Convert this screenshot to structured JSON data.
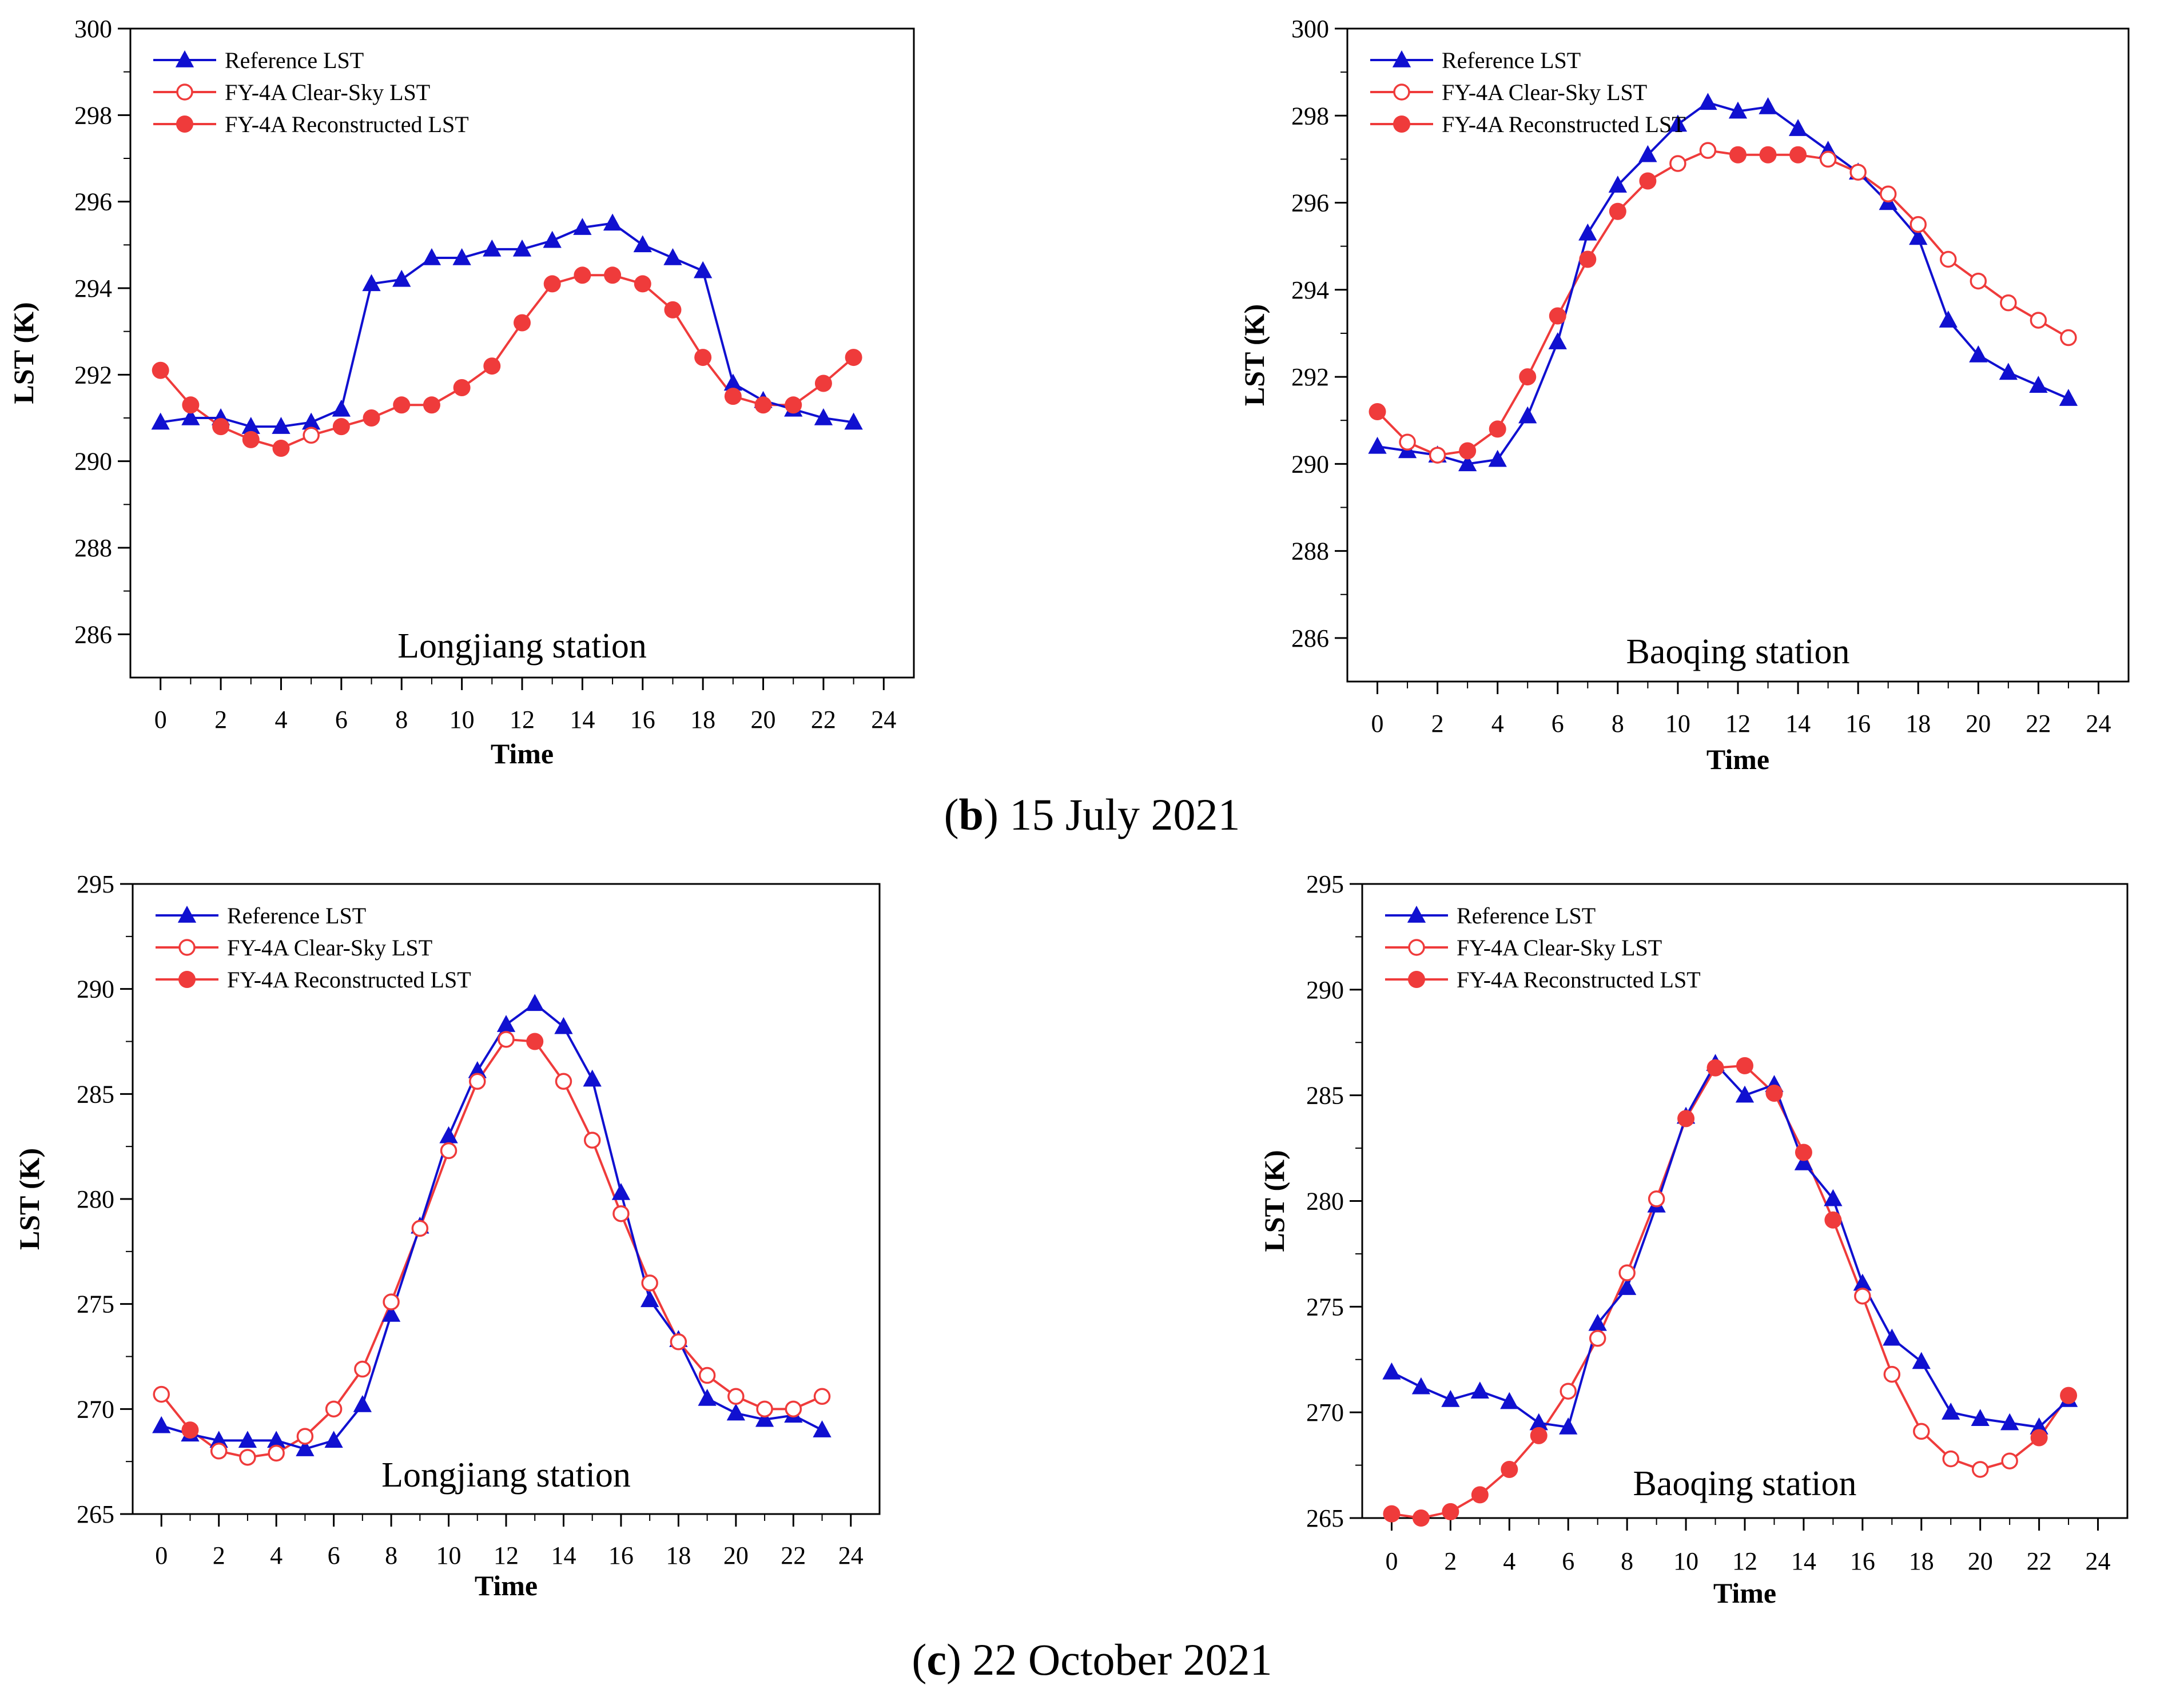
{
  "captions": [
    {
      "letter": "b",
      "text": ") 15 July 2021"
    },
    {
      "letter": "c",
      "text": ") 22 October 2021"
    }
  ],
  "legend_labels": [
    "Reference LST",
    "FY-4A Clear-Sky LST",
    "FY-4A Reconstructed LST"
  ],
  "colors": {
    "reference": "#1010d0",
    "fy4a": "#ef3b3b"
  },
  "chart_data": [
    {
      "type": "line",
      "panel": "b",
      "station_label": "Longjiang station",
      "xlabel": "Time",
      "ylabel": "LST (K)",
      "xlim": [
        -1,
        25
      ],
      "ylim": [
        285,
        300
      ],
      "xticks": [
        0,
        2,
        4,
        6,
        8,
        10,
        12,
        14,
        16,
        18,
        20,
        22,
        24
      ],
      "yticks": [
        286,
        288,
        290,
        292,
        294,
        296,
        298,
        300
      ],
      "legend": "top-left",
      "series": [
        {
          "name": "Reference LST",
          "marker": "triangle",
          "x": [
            0,
            1,
            2,
            3,
            4,
            5,
            6,
            7,
            8,
            9,
            10,
            11,
            12,
            13,
            14,
            15,
            16,
            17,
            18,
            19,
            20,
            21,
            22,
            23
          ],
          "values": [
            290.9,
            291.0,
            291.0,
            290.8,
            290.8,
            290.9,
            291.2,
            294.1,
            294.2,
            294.7,
            294.7,
            294.9,
            294.9,
            295.1,
            295.4,
            295.5,
            295.0,
            294.7,
            294.4,
            291.8,
            291.4,
            291.2,
            291.0,
            290.9
          ]
        },
        {
          "name": "FY-4A Clear-Sky LST",
          "marker": "open-circle",
          "x": [
            0,
            1,
            2,
            3,
            4,
            5,
            6,
            7,
            8,
            9,
            10,
            11,
            12,
            13,
            14,
            15,
            16,
            17,
            18,
            19,
            20,
            21,
            22,
            23
          ],
          "values": [
            292.1,
            291.3,
            290.8,
            290.5,
            290.3,
            290.6,
            290.8,
            291.0,
            291.3,
            291.3,
            291.7,
            292.2,
            293.2,
            294.1,
            294.3,
            294.3,
            294.1,
            293.5,
            292.4,
            291.5,
            291.3,
            291.3,
            291.8,
            292.4
          ],
          "open_points": [
            5
          ]
        },
        {
          "name": "FY-4A Reconstructed LST",
          "marker": "filled-circle",
          "x": [
            0,
            1,
            2,
            3,
            4,
            6,
            7,
            8,
            9,
            10,
            11,
            12,
            13,
            14,
            15,
            16,
            17,
            18,
            19,
            20,
            21,
            22,
            23
          ],
          "values": [
            292.1,
            291.3,
            290.8,
            290.5,
            290.3,
            290.8,
            291.0,
            291.3,
            291.3,
            291.7,
            292.2,
            293.2,
            294.1,
            294.3,
            294.3,
            294.1,
            293.5,
            292.4,
            291.5,
            291.3,
            291.3,
            291.8,
            292.4
          ]
        }
      ]
    },
    {
      "type": "line",
      "panel": "b",
      "station_label": "Baoqing station",
      "xlabel": "Time",
      "ylabel": "LST (K)",
      "xlim": [
        -1,
        25
      ],
      "ylim": [
        285,
        300
      ],
      "xticks": [
        0,
        2,
        4,
        6,
        8,
        10,
        12,
        14,
        16,
        18,
        20,
        22,
        24
      ],
      "yticks": [
        286,
        288,
        290,
        292,
        294,
        296,
        298,
        300
      ],
      "legend": "top-left",
      "series": [
        {
          "name": "Reference LST",
          "marker": "triangle",
          "x": [
            0,
            1,
            2,
            3,
            4,
            5,
            6,
            7,
            8,
            9,
            10,
            11,
            12,
            13,
            14,
            15,
            16,
            17,
            18,
            19,
            20,
            21,
            22,
            23
          ],
          "values": [
            290.4,
            290.3,
            290.2,
            290.0,
            290.1,
            291.1,
            292.8,
            295.3,
            296.4,
            297.1,
            297.8,
            298.3,
            298.1,
            298.2,
            297.7,
            297.2,
            296.7,
            296.0,
            295.2,
            293.3,
            292.5,
            292.1,
            291.8,
            291.5
          ]
        },
        {
          "name": "FY-4A Clear-Sky LST",
          "marker": "open-circle",
          "x": [
            0,
            1,
            2,
            3,
            4,
            5,
            6,
            7,
            8,
            9,
            10,
            11,
            12,
            13,
            14,
            15,
            16,
            17,
            18,
            19,
            20,
            21,
            22,
            23
          ],
          "values": [
            291.2,
            290.5,
            290.2,
            290.3,
            290.8,
            292.0,
            293.4,
            294.7,
            295.8,
            296.5,
            296.9,
            297.2,
            297.1,
            297.1,
            297.1,
            297.0,
            296.7,
            296.2,
            295.5,
            294.7,
            294.2,
            293.7,
            293.3,
            292.9
          ],
          "open_points": [
            1,
            2,
            10,
            11,
            15,
            16,
            17,
            18,
            19,
            20,
            21,
            22,
            23
          ]
        },
        {
          "name": "FY-4A Reconstructed LST",
          "marker": "filled-circle",
          "x": [
            0,
            3,
            4,
            5,
            6,
            7,
            8,
            9,
            12,
            13,
            14
          ],
          "values": [
            291.2,
            290.3,
            290.8,
            292.0,
            293.4,
            294.7,
            295.8,
            296.5,
            297.1,
            297.1,
            297.1
          ]
        }
      ]
    },
    {
      "type": "line",
      "panel": "c",
      "station_label": "Longjiang station",
      "xlabel": "Time",
      "ylabel": "LST (K)",
      "xlim": [
        -1,
        25
      ],
      "ylim": [
        265,
        295
      ],
      "xticks": [
        0,
        2,
        4,
        6,
        8,
        10,
        12,
        14,
        16,
        18,
        20,
        22,
        24
      ],
      "yticks": [
        265,
        270,
        275,
        280,
        285,
        290,
        295
      ],
      "legend": "top-left",
      "series": [
        {
          "name": "Reference LST",
          "marker": "triangle",
          "x": [
            0,
            1,
            2,
            3,
            4,
            5,
            6,
            7,
            8,
            9,
            10,
            11,
            12,
            13,
            14,
            15,
            16,
            17,
            18,
            19,
            20,
            21,
            22,
            23
          ],
          "values": [
            269.2,
            268.8,
            268.5,
            268.5,
            268.5,
            268.1,
            268.5,
            270.2,
            274.5,
            278.7,
            283.0,
            286.1,
            288.3,
            289.3,
            288.2,
            285.7,
            280.3,
            275.2,
            273.3,
            270.5,
            269.8,
            269.5,
            269.7,
            269.0
          ]
        },
        {
          "name": "FY-4A Clear-Sky LST",
          "marker": "open-circle",
          "x": [
            0,
            1,
            2,
            3,
            4,
            5,
            6,
            7,
            8,
            9,
            10,
            11,
            12,
            13,
            14,
            15,
            16,
            17,
            18,
            19,
            20,
            21,
            22,
            23
          ],
          "values": [
            270.7,
            269.0,
            268.0,
            267.7,
            267.9,
            268.7,
            270.0,
            271.9,
            275.1,
            278.6,
            282.3,
            285.6,
            287.6,
            287.5,
            285.6,
            282.8,
            279.3,
            276.0,
            273.2,
            271.6,
            270.6,
            270.0,
            270.0,
            270.6
          ],
          "open_points": [
            0,
            2,
            3,
            4,
            5,
            6,
            7,
            8,
            9,
            10,
            11,
            12,
            14,
            15,
            16,
            17,
            18,
            19,
            20,
            21,
            22,
            23
          ]
        },
        {
          "name": "FY-4A Reconstructed LST",
          "marker": "filled-circle",
          "x": [
            1,
            13
          ],
          "values": [
            269.0,
            287.5
          ]
        }
      ]
    },
    {
      "type": "line",
      "panel": "c",
      "station_label": "Baoqing station",
      "xlabel": "Time",
      "ylabel": "LST (K)",
      "xlim": [
        -1,
        25
      ],
      "ylim": [
        265,
        295
      ],
      "xticks": [
        0,
        2,
        4,
        6,
        8,
        10,
        12,
        14,
        16,
        18,
        20,
        22,
        24
      ],
      "yticks": [
        265,
        270,
        275,
        280,
        285,
        290,
        295
      ],
      "legend": "top-left",
      "series": [
        {
          "name": "Reference LST",
          "marker": "triangle",
          "x": [
            0,
            1,
            2,
            3,
            4,
            5,
            6,
            7,
            8,
            9,
            10,
            11,
            12,
            13,
            14,
            15,
            16,
            17,
            18,
            19,
            20,
            21,
            22,
            23
          ],
          "values": [
            271.9,
            271.2,
            270.6,
            271.0,
            270.5,
            269.5,
            269.3,
            274.2,
            275.9,
            279.8,
            284.0,
            286.5,
            285.0,
            285.5,
            281.8,
            280.1,
            276.1,
            273.5,
            272.4,
            270.0,
            269.7,
            269.5,
            269.3,
            270.6
          ]
        },
        {
          "name": "FY-4A Clear-Sky LST",
          "marker": "open-circle",
          "x": [
            0,
            1,
            2,
            3,
            4,
            5,
            6,
            7,
            8,
            9,
            10,
            11,
            12,
            13,
            14,
            15,
            16,
            17,
            18,
            19,
            20,
            21,
            22,
            23
          ],
          "values": [
            265.2,
            265.0,
            265.3,
            266.1,
            267.3,
            268.9,
            271.0,
            273.5,
            276.6,
            280.1,
            283.9,
            286.3,
            286.4,
            285.1,
            282.3,
            279.1,
            275.5,
            271.8,
            269.1,
            267.8,
            267.3,
            267.7,
            268.8,
            270.8
          ],
          "open_points": [
            6,
            7,
            8,
            9,
            16,
            17,
            18,
            19,
            20,
            21
          ]
        },
        {
          "name": "FY-4A Reconstructed LST",
          "marker": "filled-circle",
          "x": [
            0,
            1,
            2,
            3,
            4,
            5,
            10,
            11,
            12,
            13,
            14,
            15,
            22,
            23
          ],
          "values": [
            265.2,
            265.0,
            265.3,
            266.1,
            267.3,
            268.9,
            283.9,
            286.3,
            286.4,
            285.1,
            282.3,
            279.1,
            268.8,
            270.8
          ]
        }
      ]
    }
  ]
}
